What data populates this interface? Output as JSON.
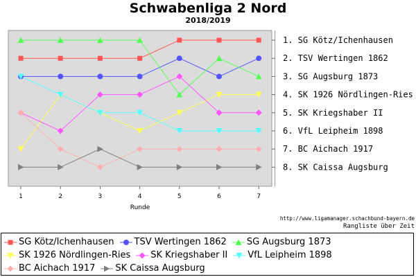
{
  "chart_data": {
    "type": "line",
    "title": "Schwabenliga 2 Nord",
    "subtitle": "2018/2019",
    "xlabel": "Runde",
    "ylabel": "",
    "x": [
      1,
      2,
      3,
      4,
      5,
      6,
      7
    ],
    "ylim": [
      1,
      8
    ],
    "y_inverted": true,
    "grid": false,
    "legend_position": "bottom",
    "series": [
      {
        "name": "SG Kötz/Ichenhausen",
        "color": "#ff5555",
        "marker": "square",
        "values": [
          2,
          2,
          2,
          2,
          1,
          1,
          1
        ]
      },
      {
        "name": "TSV Wertingen 1862",
        "color": "#5555ff",
        "marker": "circle",
        "values": [
          3,
          3,
          3,
          3,
          2,
          3,
          2
        ]
      },
      {
        "name": "SG Augsburg 1873",
        "color": "#55ff55",
        "marker": "triangle-up",
        "values": [
          1,
          1,
          1,
          1,
          4,
          2,
          3
        ]
      },
      {
        "name": "SK 1926 Nördlingen-Ries",
        "color": "#ffff55",
        "marker": "triangle-down",
        "values": [
          7,
          4,
          5,
          6,
          5,
          4,
          4
        ]
      },
      {
        "name": "SK Kriegshaber II",
        "color": "#ff55ff",
        "marker": "diamond",
        "values": [
          5,
          6,
          4,
          4,
          3,
          5,
          5
        ]
      },
      {
        "name": "VfL Leipheim 1898",
        "color": "#55ffff",
        "marker": "triangle-down",
        "values": [
          3,
          4,
          5,
          5,
          6,
          6,
          6
        ]
      },
      {
        "name": "BC Aichach 1917",
        "color": "#ffafaf",
        "marker": "diamond",
        "values": [
          5,
          7,
          8,
          7,
          7,
          7,
          7
        ]
      },
      {
        "name": "SK Caissa Augsburg",
        "color": "#808080",
        "marker": "triangle-right",
        "values": [
          8,
          8,
          7,
          8,
          8,
          8,
          8
        ]
      }
    ],
    "final_ranking": [
      "1.  SG Kötz/Ichenhausen",
      "2.  TSV Wertingen 1862",
      "3.  SG Augsburg 1873",
      "4.  SK 1926 Nördlingen-Ries",
      "5.  SK Kriegshaber II",
      "6.  VfL Leipheim 1898",
      "7.  BC Aichach 1917",
      "8.  SK Caissa Augsburg"
    ]
  },
  "footer": {
    "source": "http://www.ligamanager.schachbund-bayern.de",
    "caption": "Rangliste über Zeit"
  }
}
